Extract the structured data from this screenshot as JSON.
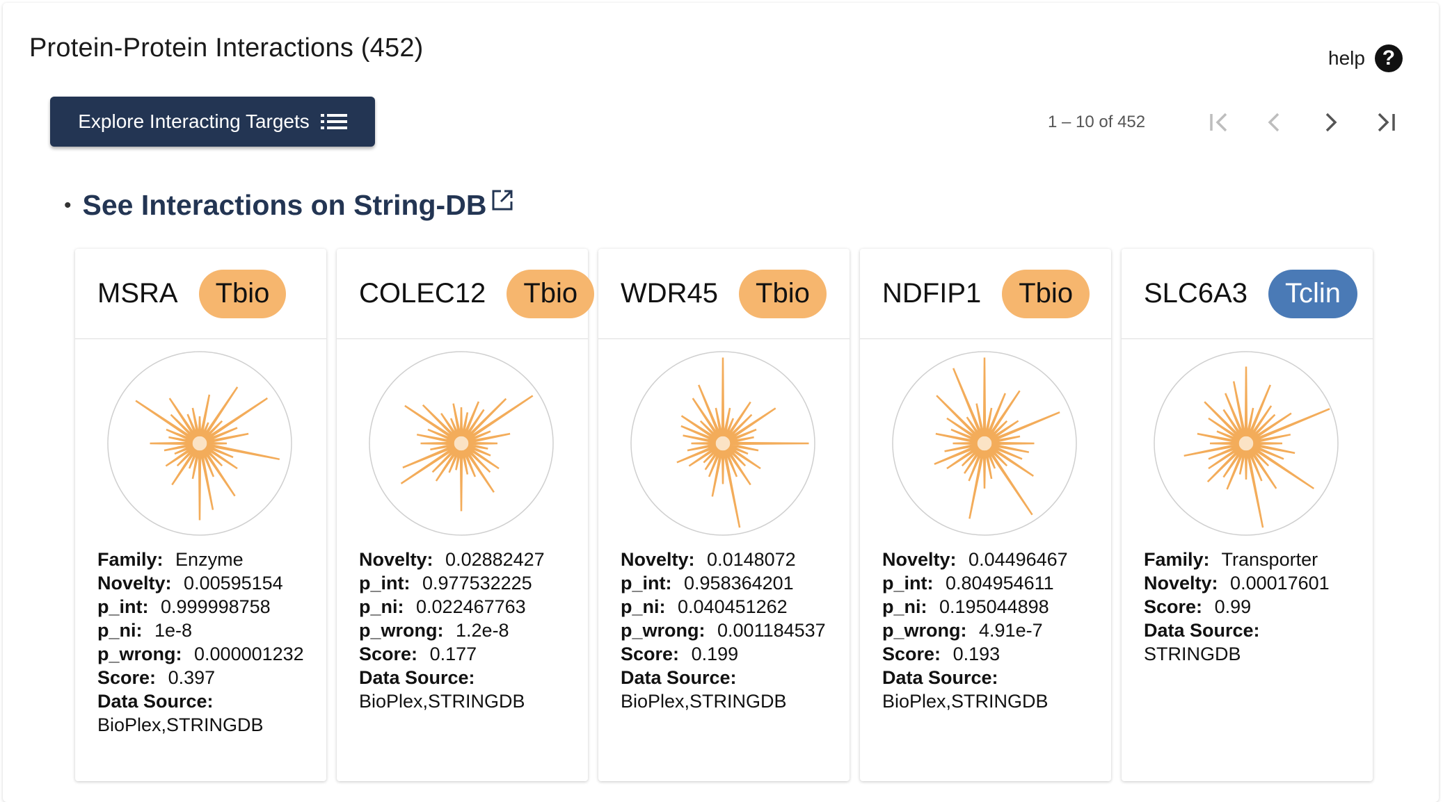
{
  "header": {
    "title": "Protein-Protein Interactions (452)",
    "help_label": "help",
    "explore_button": "Explore Interacting Targets",
    "range_label": "1 – 10 of 452",
    "stringdb_link": "See Interactions on String-DB"
  },
  "colors": {
    "navy": "#233553",
    "tbio": "#f6b66e",
    "tclin": "#4a7ab6",
    "radar_fill": "#fbe3c5",
    "radar_stroke": "#f3ac5a"
  },
  "icons": {
    "help": "question-circle-icon",
    "explore": "list-icon",
    "first": "first-page-icon",
    "prev": "chevron-left-icon",
    "next": "chevron-right-icon",
    "last": "last-page-icon",
    "external": "external-link-icon"
  },
  "cards": [
    {
      "symbol": "MSRA",
      "tdl": "Tbio",
      "props": [
        {
          "label": "Family:",
          "value": "Enzyme"
        },
        {
          "label": "Novelty:",
          "value": "0.00595154"
        },
        {
          "label": "p_int:",
          "value": "0.999998758"
        },
        {
          "label": "p_ni:",
          "value": "1e-8"
        },
        {
          "label": "p_wrong:",
          "value": "0.000001232"
        },
        {
          "label": "Score:",
          "value": "0.397"
        },
        {
          "label": "Data Source:",
          "value": "BioPlex,STRINGDB"
        }
      ]
    },
    {
      "symbol": "COLEC12",
      "tdl": "Tbio",
      "props": [
        {
          "label": "Novelty:",
          "value": "0.02882427"
        },
        {
          "label": "p_int:",
          "value": "0.977532225"
        },
        {
          "label": "p_ni:",
          "value": "0.022467763"
        },
        {
          "label": "p_wrong:",
          "value": "1.2e-8"
        },
        {
          "label": "Score:",
          "value": "0.177"
        },
        {
          "label": "Data Source:",
          "value": "BioPlex,STRINGDB"
        }
      ]
    },
    {
      "symbol": "WDR45",
      "tdl": "Tbio",
      "props": [
        {
          "label": "Novelty:",
          "value": "0.0148072"
        },
        {
          "label": "p_int:",
          "value": "0.958364201"
        },
        {
          "label": "p_ni:",
          "value": "0.040451262"
        },
        {
          "label": "p_wrong:",
          "value": "0.001184537"
        },
        {
          "label": "Score:",
          "value": "0.199"
        },
        {
          "label": "Data Source:",
          "value": "BioPlex,STRINGDB"
        }
      ]
    },
    {
      "symbol": "NDFIP1",
      "tdl": "Tbio",
      "props": [
        {
          "label": "Novelty:",
          "value": "0.04496467"
        },
        {
          "label": "p_int:",
          "value": "0.804954611"
        },
        {
          "label": "p_ni:",
          "value": "0.195044898"
        },
        {
          "label": "p_wrong:",
          "value": "4.91e-7"
        },
        {
          "label": "Score:",
          "value": "0.193"
        },
        {
          "label": "Data Source:",
          "value": "BioPlex,STRINGDB"
        }
      ]
    },
    {
      "symbol": "SLC6A3",
      "tdl": "Tclin",
      "props": [
        {
          "label": "Family:",
          "value": "Transporter"
        },
        {
          "label": "Novelty:",
          "value": "0.00017601"
        },
        {
          "label": "Score:",
          "value": "0.99"
        },
        {
          "label": "Data Source:",
          "value": "STRINGDB"
        }
      ]
    }
  ]
}
